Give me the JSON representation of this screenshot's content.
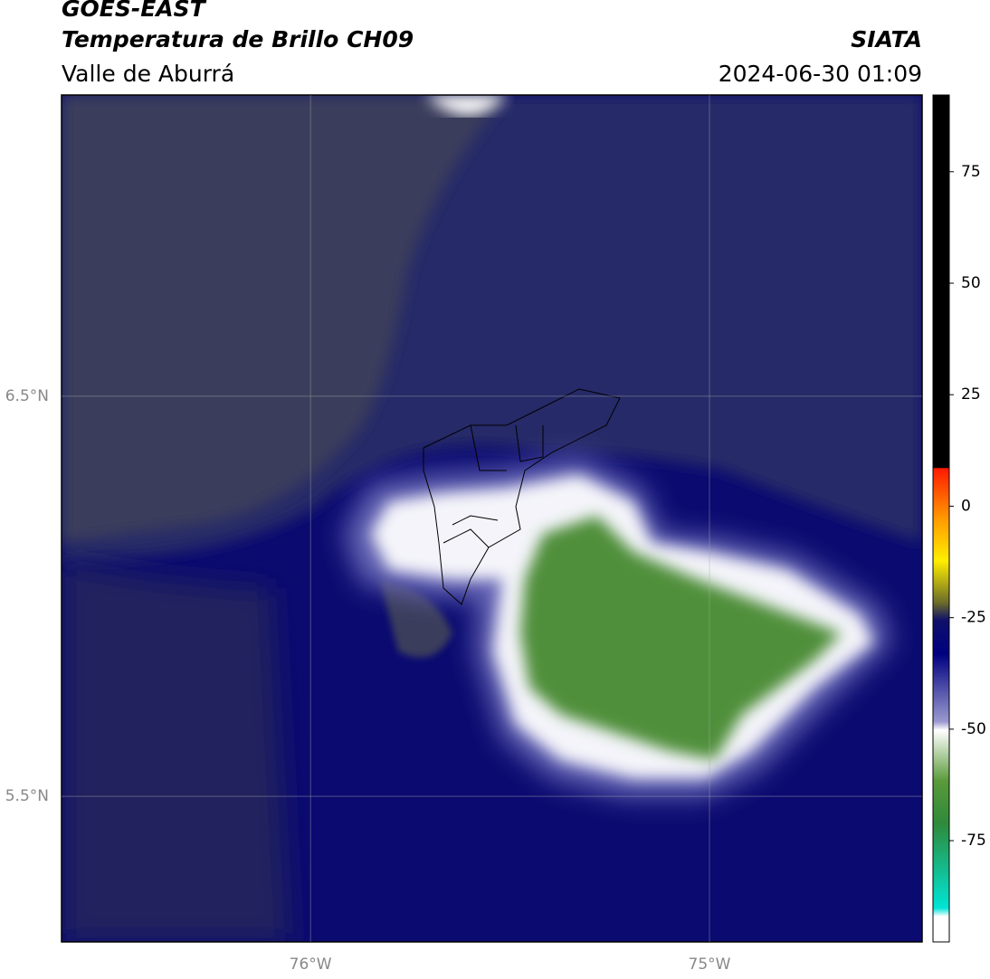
{
  "header": {
    "title": "GOES-EAST",
    "subtitle": "Temperatura de Brillo CH09",
    "region": "Valle de Aburrá",
    "source": "SIATA",
    "datetime": "2024-06-30 01:09"
  },
  "map": {
    "xlim": [
      -76.624,
      -74.467
    ],
    "ylim": [
      5.136,
      7.253
    ],
    "xticks": [
      {
        "value": -76,
        "label": "76°W"
      },
      {
        "value": -75,
        "label": "75°W"
      }
    ],
    "yticks": [
      {
        "value": 6.5,
        "label": "6.5°N"
      },
      {
        "value": 5.5,
        "label": "5.5°N"
      }
    ],
    "grid": true
  },
  "colorbar": {
    "lim": [
      -97.7,
      92.2
    ],
    "ticks": [
      75,
      50,
      25,
      0,
      -25,
      -50,
      -75
    ]
  }
}
